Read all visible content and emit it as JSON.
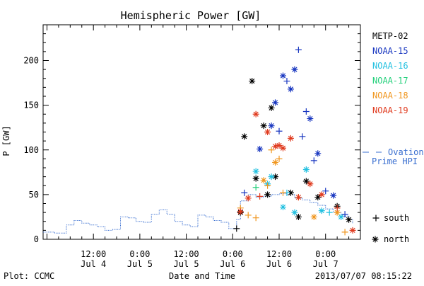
{
  "chart_data": {
    "type": "scatter",
    "title": "Hemispheric Power [GW]",
    "xlabel": "Date and Time",
    "ylabel": "P [GW]",
    "xlim": [
      "2013-07-03T23:00",
      "2013-07-07T09:00"
    ],
    "ylim": [
      0,
      240
    ],
    "y_ticks": [
      0,
      50,
      100,
      150,
      200
    ],
    "x_ticks": [
      {
        "t": "2013-07-04T12:00",
        "time": "12:00",
        "date": "Jul 4"
      },
      {
        "t": "2013-07-05T00:00",
        "time": "0:00",
        "date": "Jul 5"
      },
      {
        "t": "2013-07-05T12:00",
        "time": "12:00",
        "date": "Jul 5"
      },
      {
        "t": "2013-07-06T00:00",
        "time": "0:00",
        "date": "Jul 6"
      },
      {
        "t": "2013-07-06T12:00",
        "time": "12:00",
        "date": "Jul 6"
      },
      {
        "t": "2013-07-07T00:00",
        "time": "0:00",
        "date": "Jul 7"
      }
    ],
    "legend_position": "right",
    "markers": {
      "south": "+",
      "north": "*"
    },
    "marker_legend": {
      "south": "south",
      "north": "north"
    },
    "ovation": {
      "name_line1": "Ovation",
      "name_line2": "Prime HPI",
      "color": "#3a6fd0",
      "points": [
        [
          "2013-07-03T23:00",
          8
        ],
        [
          "2013-07-04T02:00",
          7
        ],
        [
          "2013-07-04T05:00",
          16
        ],
        [
          "2013-07-04T07:00",
          21
        ],
        [
          "2013-07-04T09:00",
          18
        ],
        [
          "2013-07-04T11:00",
          16
        ],
        [
          "2013-07-04T13:00",
          14
        ],
        [
          "2013-07-04T15:00",
          10
        ],
        [
          "2013-07-04T17:00",
          11
        ],
        [
          "2013-07-04T19:00",
          25
        ],
        [
          "2013-07-04T21:00",
          24
        ],
        [
          "2013-07-04T23:00",
          20
        ],
        [
          "2013-07-05T01:00",
          19
        ],
        [
          "2013-07-05T03:00",
          28
        ],
        [
          "2013-07-05T05:00",
          33
        ],
        [
          "2013-07-05T07:00",
          28
        ],
        [
          "2013-07-05T09:00",
          20
        ],
        [
          "2013-07-05T11:00",
          16
        ],
        [
          "2013-07-05T13:00",
          14
        ],
        [
          "2013-07-05T15:00",
          27
        ],
        [
          "2013-07-05T17:00",
          25
        ],
        [
          "2013-07-05T19:00",
          21
        ],
        [
          "2013-07-05T21:00",
          19
        ],
        [
          "2013-07-05T23:00",
          12
        ],
        [
          "2013-07-06T01:00",
          22
        ],
        [
          "2013-07-06T02:00",
          43
        ],
        [
          "2013-07-06T04:00",
          50
        ],
        [
          "2013-07-06T06:00",
          47
        ],
        [
          "2013-07-06T08:00",
          48
        ],
        [
          "2013-07-06T10:00",
          50
        ],
        [
          "2013-07-06T12:00",
          51
        ],
        [
          "2013-07-06T14:00",
          50
        ],
        [
          "2013-07-06T16:00",
          46
        ],
        [
          "2013-07-06T18:00",
          44
        ],
        [
          "2013-07-06T20:00",
          41
        ],
        [
          "2013-07-06T22:00",
          38
        ],
        [
          "2013-07-07T00:00",
          34
        ],
        [
          "2013-07-07T02:00",
          30
        ],
        [
          "2013-07-07T04:00",
          26
        ],
        [
          "2013-07-07T06:00",
          22
        ],
        [
          "2013-07-07T07:00",
          18
        ]
      ]
    },
    "series": [
      {
        "name": "METP-02",
        "color": "#000000",
        "points": [
          [
            "2013-07-06T01:00",
            12,
            "south"
          ],
          [
            "2013-07-06T02:00",
            30,
            "north"
          ],
          [
            "2013-07-06T03:00",
            115,
            "north"
          ],
          [
            "2013-07-06T05:00",
            177,
            "north"
          ],
          [
            "2013-07-06T06:00",
            68,
            "north"
          ],
          [
            "2013-07-06T08:00",
            127,
            "north"
          ],
          [
            "2013-07-06T10:00",
            147,
            "north"
          ],
          [
            "2013-07-06T11:00",
            70,
            "north"
          ],
          [
            "2013-07-06T09:00",
            50,
            "north"
          ],
          [
            "2013-07-06T15:00",
            52,
            "north"
          ],
          [
            "2013-07-06T17:00",
            25,
            "north"
          ],
          [
            "2013-07-06T19:00",
            65,
            "north"
          ],
          [
            "2013-07-06T22:00",
            47,
            "north"
          ],
          [
            "2013-07-07T03:00",
            37,
            "north"
          ],
          [
            "2013-07-07T06:00",
            22,
            "north"
          ]
        ]
      },
      {
        "name": "NOAA-15",
        "color": "#1836c0",
        "points": [
          [
            "2013-07-06T03:00",
            52,
            "south"
          ],
          [
            "2013-07-06T07:00",
            101,
            "north"
          ],
          [
            "2013-07-06T10:00",
            127,
            "north"
          ],
          [
            "2013-07-06T11:00",
            153,
            "north"
          ],
          [
            "2013-07-06T12:00",
            121,
            "south"
          ],
          [
            "2013-07-06T13:00",
            183,
            "north"
          ],
          [
            "2013-07-06T14:00",
            177,
            "south"
          ],
          [
            "2013-07-06T15:00",
            168,
            "north"
          ],
          [
            "2013-07-06T16:00",
            190,
            "north"
          ],
          [
            "2013-07-06T17:00",
            212,
            "south"
          ],
          [
            "2013-07-06T19:00",
            143,
            "south"
          ],
          [
            "2013-07-06T20:00",
            135,
            "north"
          ],
          [
            "2013-07-06T18:00",
            115,
            "south"
          ],
          [
            "2013-07-06T21:00",
            88,
            "south"
          ],
          [
            "2013-07-06T22:00",
            96,
            "north"
          ],
          [
            "2013-07-07T00:00",
            54,
            "south"
          ],
          [
            "2013-07-07T02:00",
            49,
            "north"
          ],
          [
            "2013-07-07T05:00",
            28,
            "south"
          ]
        ]
      },
      {
        "name": "NOAA-16",
        "color": "#22c0e0",
        "points": [
          [
            "2013-07-06T06:00",
            76,
            "north"
          ],
          [
            "2013-07-06T09:00",
            62,
            "north"
          ],
          [
            "2013-07-06T10:00",
            70,
            "north"
          ],
          [
            "2013-07-06T13:00",
            36,
            "north"
          ],
          [
            "2013-07-06T14:00",
            52,
            "south"
          ],
          [
            "2013-07-06T16:00",
            30,
            "north"
          ],
          [
            "2013-07-06T19:00",
            78,
            "north"
          ],
          [
            "2013-07-06T23:00",
            32,
            "north"
          ],
          [
            "2013-07-07T01:00",
            30,
            "south"
          ],
          [
            "2013-07-07T04:00",
            25,
            "north"
          ]
        ]
      },
      {
        "name": "NOAA-17",
        "color": "#22d07a",
        "points": [
          [
            "2013-07-06T06:00",
            58,
            "south"
          ]
        ]
      },
      {
        "name": "NOAA-18",
        "color": "#f0961e",
        "points": [
          [
            "2013-07-06T02:00",
            35,
            "south"
          ],
          [
            "2013-07-06T04:00",
            27,
            "south"
          ],
          [
            "2013-07-06T06:00",
            24,
            "south"
          ],
          [
            "2013-07-06T08:00",
            66,
            "north"
          ],
          [
            "2013-07-06T09:00",
            60,
            "south"
          ],
          [
            "2013-07-06T10:00",
            100,
            "south"
          ],
          [
            "2013-07-06T11:00",
            86,
            "north"
          ],
          [
            "2013-07-06T12:00",
            90,
            "south"
          ],
          [
            "2013-07-06T13:00",
            52,
            "south"
          ],
          [
            "2013-07-06T17:00",
            47,
            "south"
          ],
          [
            "2013-07-06T21:00",
            25,
            "north"
          ],
          [
            "2013-07-07T03:00",
            30,
            "north"
          ],
          [
            "2013-07-07T05:00",
            8,
            "south"
          ]
        ]
      },
      {
        "name": "NOAA-19",
        "color": "#e03a1e",
        "points": [
          [
            "2013-07-06T02:00",
            31,
            "north"
          ],
          [
            "2013-07-06T04:00",
            46,
            "north"
          ],
          [
            "2013-07-06T06:00",
            140,
            "north"
          ],
          [
            "2013-07-06T07:00",
            48,
            "south"
          ],
          [
            "2013-07-06T09:00",
            120,
            "north"
          ],
          [
            "2013-07-06T11:00",
            104,
            "north"
          ],
          [
            "2013-07-06T12:00",
            105,
            "north"
          ],
          [
            "2013-07-06T13:00",
            102,
            "north"
          ],
          [
            "2013-07-06T15:00",
            113,
            "north"
          ],
          [
            "2013-07-06T17:00",
            47,
            "north"
          ],
          [
            "2013-07-06T20:00",
            62,
            "north"
          ],
          [
            "2013-07-06T23:00",
            50,
            "north"
          ],
          [
            "2013-07-07T03:00",
            35,
            "south"
          ],
          [
            "2013-07-07T07:00",
            10,
            "north"
          ]
        ]
      }
    ]
  },
  "footer": {
    "left": "Plot: CCMC",
    "timestamp": "2013/07/07 08:15:22"
  }
}
